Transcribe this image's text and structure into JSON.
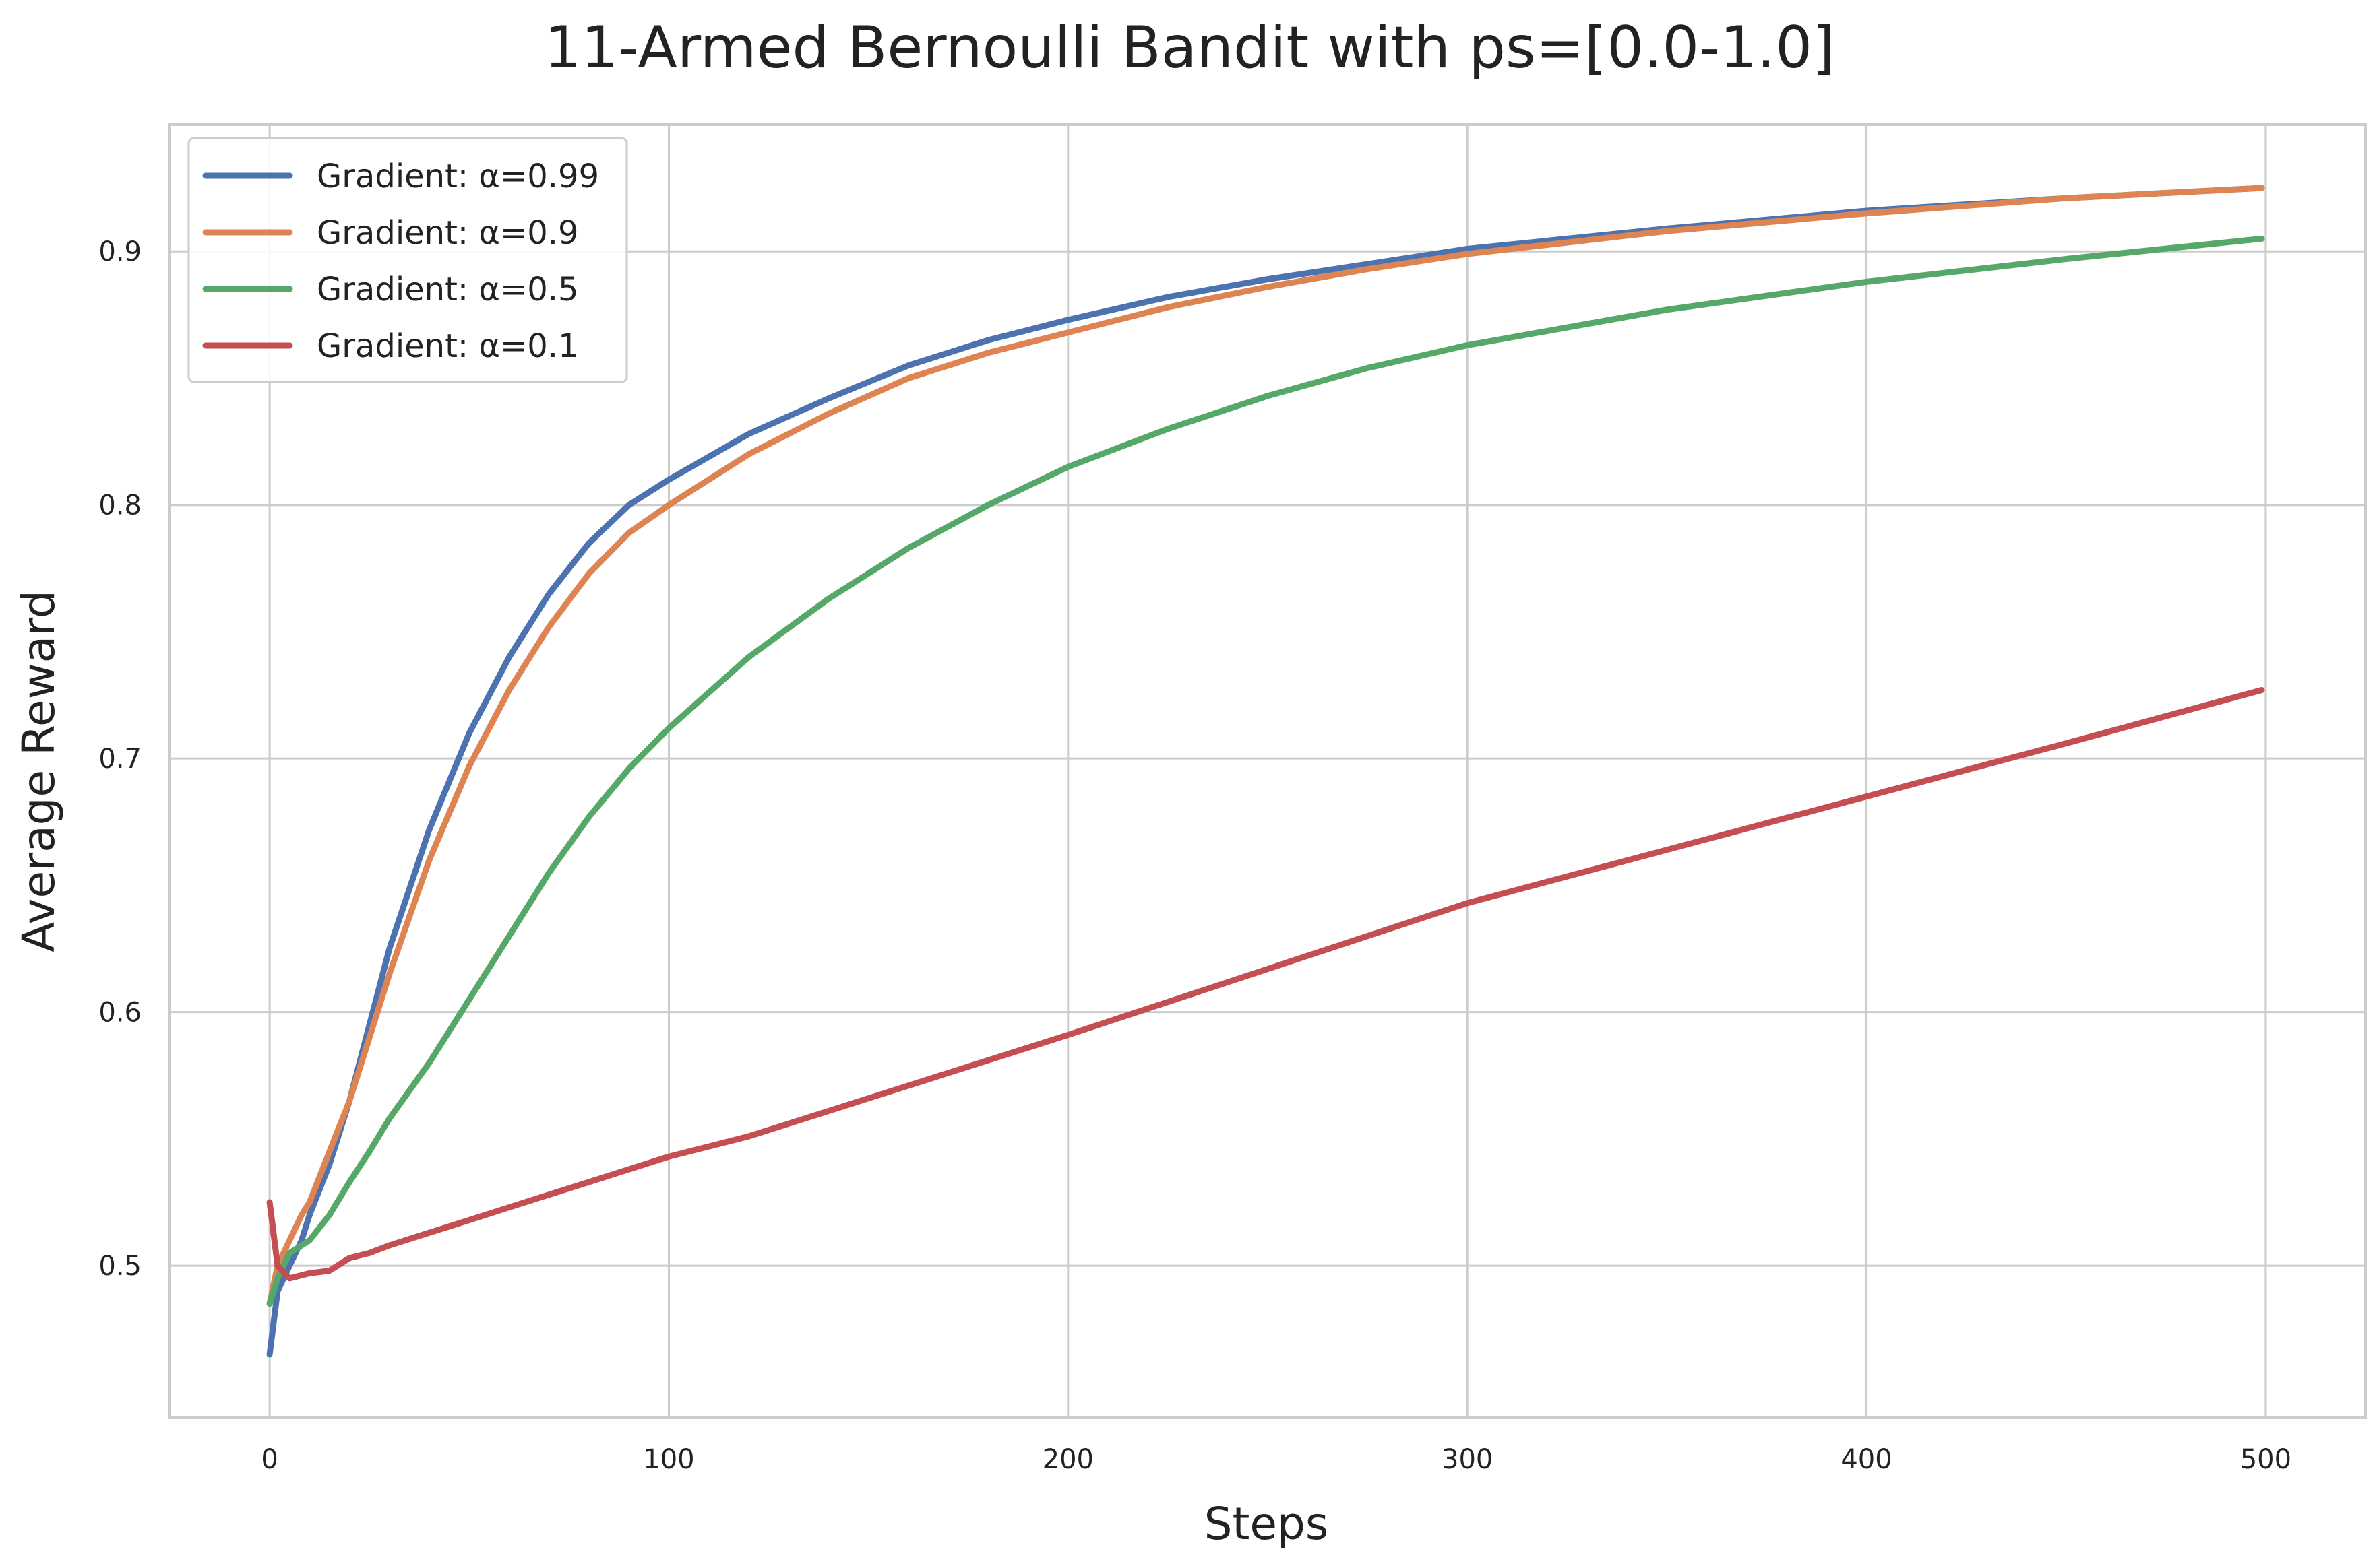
{
  "chart_data": {
    "type": "line",
    "title": "11-Armed Bernoulli Bandit with ps=[0.0-1.0]",
    "xlabel": "Steps",
    "ylabel": "Average Reward",
    "xlim": [
      -25,
      525
    ],
    "ylim": [
      0.44,
      0.95
    ],
    "xticks": [
      0,
      100,
      200,
      300,
      400,
      500
    ],
    "yticks": [
      0.5,
      0.6,
      0.7,
      0.8,
      0.9
    ],
    "xtick_labels": [
      "0",
      "100",
      "200",
      "300",
      "400",
      "500"
    ],
    "ytick_labels": [
      "0.5",
      "0.6",
      "0.7",
      "0.8",
      "0.9"
    ],
    "grid": true,
    "legend_position": "top-left",
    "series": [
      {
        "name": "Gradient: α=0.99",
        "color": "#4c72b0",
        "x": [
          0,
          2,
          5,
          8,
          10,
          15,
          20,
          25,
          30,
          40,
          50,
          60,
          70,
          80,
          90,
          100,
          120,
          140,
          160,
          180,
          200,
          225,
          250,
          275,
          300,
          350,
          400,
          450,
          499
        ],
        "y": [
          0.465,
          0.49,
          0.5,
          0.51,
          0.52,
          0.54,
          0.565,
          0.595,
          0.625,
          0.672,
          0.71,
          0.74,
          0.765,
          0.785,
          0.8,
          0.81,
          0.828,
          0.842,
          0.855,
          0.865,
          0.873,
          0.882,
          0.889,
          0.895,
          0.901,
          0.909,
          0.916,
          0.921,
          0.925
        ]
      },
      {
        "name": "Gradient: α=0.9",
        "color": "#dd8452",
        "x": [
          0,
          2,
          5,
          8,
          10,
          15,
          20,
          25,
          30,
          40,
          50,
          60,
          70,
          80,
          90,
          100,
          120,
          140,
          160,
          180,
          200,
          225,
          250,
          275,
          300,
          350,
          400,
          450,
          499
        ],
        "y": [
          0.485,
          0.5,
          0.51,
          0.52,
          0.525,
          0.545,
          0.565,
          0.59,
          0.615,
          0.66,
          0.697,
          0.727,
          0.752,
          0.773,
          0.789,
          0.8,
          0.82,
          0.836,
          0.85,
          0.86,
          0.868,
          0.878,
          0.886,
          0.893,
          0.899,
          0.908,
          0.915,
          0.921,
          0.925
        ]
      },
      {
        "name": "Gradient: α=0.5",
        "color": "#55a868",
        "x": [
          0,
          2,
          5,
          10,
          15,
          20,
          25,
          30,
          40,
          50,
          60,
          70,
          80,
          90,
          100,
          120,
          140,
          160,
          180,
          200,
          225,
          250,
          275,
          300,
          350,
          400,
          450,
          499
        ],
        "y": [
          0.485,
          0.495,
          0.505,
          0.51,
          0.52,
          0.533,
          0.545,
          0.558,
          0.58,
          0.605,
          0.63,
          0.655,
          0.677,
          0.696,
          0.712,
          0.74,
          0.763,
          0.783,
          0.8,
          0.815,
          0.83,
          0.843,
          0.854,
          0.863,
          0.877,
          0.888,
          0.897,
          0.905
        ]
      },
      {
        "name": "Gradient: α=0.1",
        "color": "#c44e52",
        "x": [
          0,
          2,
          5,
          10,
          15,
          20,
          25,
          30,
          40,
          50,
          60,
          70,
          80,
          90,
          100,
          120,
          140,
          160,
          180,
          200,
          225,
          250,
          275,
          300,
          350,
          400,
          450,
          499
        ],
        "y": [
          0.525,
          0.5,
          0.495,
          0.497,
          0.498,
          0.503,
          0.505,
          0.508,
          0.513,
          0.518,
          0.523,
          0.528,
          0.533,
          0.538,
          0.543,
          0.551,
          0.561,
          0.571,
          0.581,
          0.591,
          0.604,
          0.617,
          0.63,
          0.643,
          0.664,
          0.685,
          0.706,
          0.727
        ]
      }
    ]
  }
}
